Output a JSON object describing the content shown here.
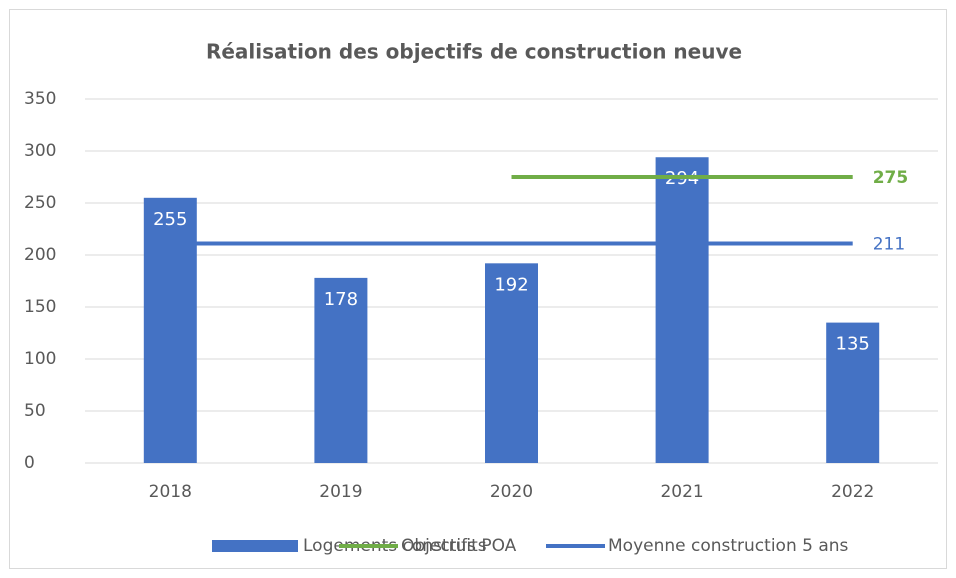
{
  "chart_data": {
    "type": "bar",
    "title": "Réalisation des objectifs de construction neuve",
    "categories": [
      "2018",
      "2019",
      "2020",
      "2021",
      "2022"
    ],
    "series": [
      {
        "name": "Logements construits",
        "type": "bar",
        "color": "#4472c4",
        "values": [
          255,
          178,
          192,
          294,
          135
        ]
      },
      {
        "name": "Objectifs POA",
        "type": "line",
        "color": "#70ad47",
        "values": [
          null,
          null,
          275,
          275,
          275
        ]
      },
      {
        "name": "Moyenne construction 5 ans",
        "type": "line",
        "color": "#4472c4",
        "values": [
          211,
          211,
          211,
          211,
          211
        ]
      }
    ],
    "ylim": [
      0,
      350
    ],
    "yticks": [
      0,
      50,
      100,
      150,
      200,
      250,
      300,
      350
    ],
    "grid": true,
    "legend": "bottom"
  }
}
